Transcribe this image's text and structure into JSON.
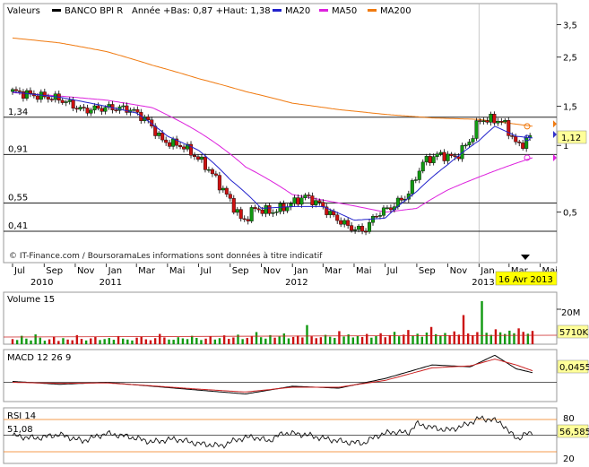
{
  "colors": {
    "ma20": "#2222cc",
    "ma50": "#dd22dd",
    "ma200": "#f07a10",
    "up": "#119911",
    "down": "#cc1111",
    "macd": "#111111",
    "macd_signal": "#cc2222",
    "rsi": "#111111",
    "level_line": "#222222",
    "highlight": "#ffff00",
    "last_price_label": "#3333cc"
  },
  "header": {
    "valeurs": "Valeurs",
    "name": "BANCO BPI R",
    "range": "Année +Bas: 0,87 +Haut: 1,38",
    "ma20": "MA20",
    "ma50": "MA50",
    "ma200": "MA200"
  },
  "credit": "© IT-Finance.com / BoursoramaLes informations sont données à titre indicatif",
  "highlight_date": "16 Avr 2013",
  "last_price": "1,12",
  "volume_panel": {
    "label": "Volume 15",
    "scale_label": "20M",
    "last_value": "5710K"
  },
  "macd_panel": {
    "label": "MACD 12 26 9",
    "last_value": "0,0455"
  },
  "rsi_panel": {
    "label": "RSI 14",
    "level_label": "51,08",
    "last_value": "56,585",
    "ticks": [
      "80",
      "20"
    ]
  },
  "chart_data": [
    {
      "type": "candlestick",
      "title": "BANCO BPI R",
      "y_scale": "log",
      "y_ticks": [
        {
          "label": "3,5",
          "value": 3.5
        },
        {
          "label": "2,5",
          "value": 2.5
        },
        {
          "label": "1,5",
          "value": 1.5
        },
        {
          "label": "1",
          "value": 1
        },
        {
          "label": "0,5",
          "value": 0.5
        }
      ],
      "levels": [
        {
          "label": "1,34",
          "value": 1.34
        },
        {
          "label": "0,91",
          "value": 0.91
        },
        {
          "label": "0,55",
          "value": 0.55
        },
        {
          "label": "0,41",
          "value": 0.41
        }
      ],
      "x_months": [
        "Jul",
        "Sep",
        "Nov",
        "Jan",
        "Mar",
        "Mai",
        "Jul",
        "Sep",
        "Nov",
        "Jan",
        "Mar",
        "Mai",
        "Jul",
        "Sep",
        "Nov",
        "Jan",
        "Mar",
        "Mai"
      ],
      "x_years": [
        "2010",
        "2011",
        "2012",
        "2013"
      ],
      "close_anchors": [
        [
          "2010-07-01",
          1.75
        ],
        [
          "2010-08-15",
          1.68
        ],
        [
          "2010-10-01",
          1.62
        ],
        [
          "2010-11-15",
          1.44
        ],
        [
          "2011-01-01",
          1.48
        ],
        [
          "2011-02-15",
          1.46
        ],
        [
          "2011-03-20",
          1.31
        ],
        [
          "2011-04-20",
          1.05
        ],
        [
          "2011-06-01",
          0.99
        ],
        [
          "2011-07-15",
          0.81
        ],
        [
          "2011-08-20",
          0.62
        ],
        [
          "2011-09-25",
          0.45
        ],
        [
          "2011-10-20",
          0.52
        ],
        [
          "2011-11-20",
          0.5
        ],
        [
          "2011-12-20",
          0.53
        ],
        [
          "2012-01-25",
          0.59
        ],
        [
          "2012-02-20",
          0.55
        ],
        [
          "2012-03-20",
          0.48
        ],
        [
          "2012-04-20",
          0.43
        ],
        [
          "2012-05-20",
          0.41
        ],
        [
          "2012-06-15",
          0.49
        ],
        [
          "2012-07-15",
          0.53
        ],
        [
          "2012-08-15",
          0.6
        ],
        [
          "2012-09-15",
          0.85
        ],
        [
          "2012-10-15",
          0.91
        ],
        [
          "2012-11-15",
          0.88
        ],
        [
          "2012-12-15",
          1.05
        ],
        [
          "2013-01-01",
          1.3
        ],
        [
          "2013-01-20",
          1.31
        ],
        [
          "2013-02-15",
          1.29
        ],
        [
          "2013-03-01",
          1.15
        ],
        [
          "2013-03-20",
          0.98
        ],
        [
          "2013-04-01",
          1.05
        ],
        [
          "2013-04-16",
          1.12
        ]
      ],
      "ma20_anchors": [
        [
          "2010-07-01",
          1.74
        ],
        [
          "2010-10-01",
          1.65
        ],
        [
          "2011-01-01",
          1.5
        ],
        [
          "2011-03-01",
          1.4
        ],
        [
          "2011-05-01",
          1.1
        ],
        [
          "2011-07-01",
          0.95
        ],
        [
          "2011-09-01",
          0.7
        ],
        [
          "2011-11-01",
          0.52
        ],
        [
          "2012-01-01",
          0.53
        ],
        [
          "2012-03-01",
          0.53
        ],
        [
          "2012-05-01",
          0.46
        ],
        [
          "2012-07-01",
          0.47
        ],
        [
          "2012-09-01",
          0.62
        ],
        [
          "2012-11-01",
          0.82
        ],
        [
          "2013-01-01",
          1.05
        ],
        [
          "2013-02-01",
          1.22
        ],
        [
          "2013-03-15",
          1.1
        ],
        [
          "2013-04-16",
          1.08
        ]
      ],
      "ma50_anchors": [
        [
          "2010-07-01",
          1.73
        ],
        [
          "2010-10-01",
          1.67
        ],
        [
          "2011-01-01",
          1.6
        ],
        [
          "2011-04-01",
          1.48
        ],
        [
          "2011-07-01",
          1.15
        ],
        [
          "2011-10-01",
          0.8
        ],
        [
          "2012-01-01",
          0.6
        ],
        [
          "2012-04-01",
          0.55
        ],
        [
          "2012-07-01",
          0.5
        ],
        [
          "2012-09-01",
          0.52
        ],
        [
          "2012-11-01",
          0.63
        ],
        [
          "2013-01-01",
          0.72
        ],
        [
          "2013-04-16",
          0.88
        ]
      ],
      "ma200_anchors": [
        [
          "2010-07-01",
          3.05
        ],
        [
          "2010-10-01",
          2.9
        ],
        [
          "2011-01-01",
          2.65
        ],
        [
          "2011-04-01",
          2.3
        ],
        [
          "2011-07-01",
          2.0
        ],
        [
          "2011-10-01",
          1.75
        ],
        [
          "2012-01-01",
          1.55
        ],
        [
          "2012-04-01",
          1.45
        ],
        [
          "2012-07-01",
          1.38
        ],
        [
          "2012-10-01",
          1.33
        ],
        [
          "2013-01-01",
          1.31
        ],
        [
          "2013-04-16",
          1.22
        ]
      ]
    },
    {
      "type": "bar",
      "title": "Volume 15",
      "unit": "shares",
      "values_M": [
        2.2,
        1.8,
        3.6,
        2.4,
        1.6,
        4.2,
        2.8,
        1.5,
        2.1,
        3.3,
        1.4,
        2.6,
        2.0,
        1.7,
        3.9,
        2.3,
        1.6,
        2.5,
        3.1,
        1.8,
        2.2,
        2.7,
        1.9,
        3.5,
        2.4,
        2.0,
        1.6,
        2.8,
        3.2,
        2.1,
        1.7,
        2.6,
        4.4,
        2.9,
        2.0,
        1.9,
        3.0,
        2.5,
        2.2,
        3.6,
        2.7,
        1.8,
        2.4,
        3.3,
        2.0,
        2.6,
        3.8,
        2.3,
        2.9,
        4.1,
        2.2,
        2.7,
        3.5,
        5.2,
        3.0,
        2.4,
        3.9,
        2.8,
        3.3,
        4.6,
        2.5,
        3.1,
        3.7,
        2.9,
        8.2,
        3.4,
        2.6,
        3.0,
        4.0,
        3.2,
        2.7,
        5.6,
        3.3,
        4.2,
        2.9,
        3.6,
        3.1,
        4.4,
        2.8,
        3.5,
        4.7,
        3.0,
        3.9,
        5.3,
        3.4,
        4.1,
        6.1,
        3.7,
        4.5,
        3.2,
        5.0,
        7.4,
        4.3,
        3.6,
        4.8,
        3.9,
        5.5,
        4.1,
        12.5,
        4.6,
        3.8,
        5.2,
        18.5,
        4.9,
        4.0,
        6.4,
        5.1,
        4.4,
        5.8,
        4.7,
        6.8,
        5.3,
        4.5,
        5.7
      ]
    },
    {
      "type": "line",
      "title": "MACD 12 26 9",
      "series": [
        {
          "name": "MACD",
          "anchors": [
            [
              "2010-07-01",
              0.005
            ],
            [
              "2010-10-01",
              -0.01
            ],
            [
              "2011-01-01",
              0.0
            ],
            [
              "2011-04-01",
              -0.02
            ],
            [
              "2011-07-01",
              -0.04
            ],
            [
              "2011-10-01",
              -0.06
            ],
            [
              "2012-01-01",
              -0.02
            ],
            [
              "2012-04-01",
              -0.03
            ],
            [
              "2012-07-01",
              0.02
            ],
            [
              "2012-10-01",
              0.09
            ],
            [
              "2012-12-15",
              0.08
            ],
            [
              "2013-02-01",
              0.14
            ],
            [
              "2013-03-15",
              0.07
            ],
            [
              "2013-04-16",
              0.05
            ]
          ]
        },
        {
          "name": "Signal",
          "anchors": [
            [
              "2010-07-01",
              0.0
            ],
            [
              "2010-10-01",
              -0.005
            ],
            [
              "2011-01-01",
              -0.003
            ],
            [
              "2011-04-01",
              -0.018
            ],
            [
              "2011-07-01",
              -0.035
            ],
            [
              "2011-10-01",
              -0.05
            ],
            [
              "2012-01-01",
              -0.025
            ],
            [
              "2012-04-01",
              -0.025
            ],
            [
              "2012-07-01",
              0.01
            ],
            [
              "2012-10-01",
              0.075
            ],
            [
              "2012-12-15",
              0.085
            ],
            [
              "2013-02-01",
              0.12
            ],
            [
              "2013-03-15",
              0.09
            ],
            [
              "2013-04-16",
              0.06
            ]
          ]
        }
      ],
      "ylim": [
        -0.09,
        0.16
      ],
      "ref_level": 0
    },
    {
      "type": "line",
      "title": "RSI 14",
      "ylim": [
        0,
        100
      ],
      "levels": [
        80,
        51.08,
        20
      ],
      "anchors": [
        [
          "2010-07-01",
          50
        ],
        [
          "2010-08-15",
          45
        ],
        [
          "2010-10-01",
          52
        ],
        [
          "2010-11-15",
          40
        ],
        [
          "2011-01-01",
          54
        ],
        [
          "2011-02-15",
          48
        ],
        [
          "2011-04-01",
          38
        ],
        [
          "2011-05-15",
          44
        ],
        [
          "2011-07-01",
          35
        ],
        [
          "2011-08-15",
          31
        ],
        [
          "2011-09-15",
          43
        ],
        [
          "2011-10-15",
          48
        ],
        [
          "2011-11-15",
          40
        ],
        [
          "2011-12-15",
          55
        ],
        [
          "2012-01-25",
          52
        ],
        [
          "2012-03-01",
          45
        ],
        [
          "2012-04-15",
          38
        ],
        [
          "2012-05-20",
          36
        ],
        [
          "2012-06-15",
          50
        ],
        [
          "2012-07-15",
          57
        ],
        [
          "2012-08-15",
          55
        ],
        [
          "2012-09-01",
          72
        ],
        [
          "2012-10-01",
          65
        ],
        [
          "2012-11-01",
          60
        ],
        [
          "2012-12-01",
          68
        ],
        [
          "2013-01-01",
          82
        ],
        [
          "2013-01-25",
          80
        ],
        [
          "2013-02-15",
          73
        ],
        [
          "2013-03-01",
          56
        ],
        [
          "2013-03-20",
          44
        ],
        [
          "2013-04-01",
          52
        ],
        [
          "2013-04-16",
          56.585
        ]
      ]
    }
  ]
}
